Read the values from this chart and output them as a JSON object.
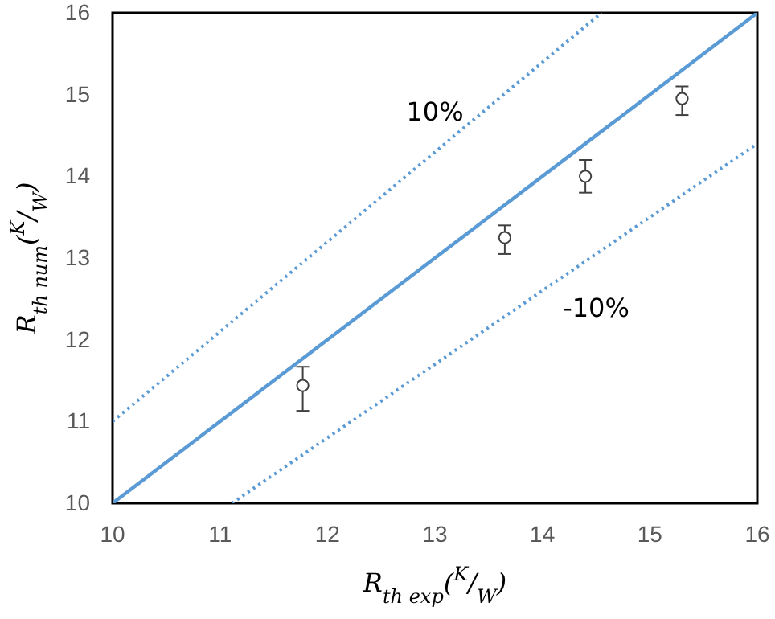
{
  "chart_data": {
    "type": "scatter",
    "xlabel": "R$_{th exp}$($^{K}$/$_{W}$)",
    "ylabel": "R$_{th num}$($^{K}$/$_{W}$)",
    "xlim": [
      10,
      16
    ],
    "ylim": [
      10,
      16
    ],
    "xticks": [
      10,
      11,
      12,
      13,
      14,
      15,
      16
    ],
    "yticks": [
      10,
      11,
      12,
      13,
      14,
      15,
      16
    ],
    "grid": false,
    "series": [
      {
        "type": "line",
        "color": "#5b9bd5",
        "line_style": "solid",
        "marker": "none",
        "x": [
          10,
          16
        ],
        "values": [
          10,
          16
        ]
      },
      {
        "type": "line",
        "color": "#5b9bd5",
        "line_style": "dotted",
        "marker": "none",
        "x": [
          10,
          14.55
        ],
        "values": [
          11,
          16
        ]
      },
      {
        "type": "line",
        "color": "#5b9bd5",
        "line_style": "dotted",
        "marker": "none",
        "x": [
          11.11,
          16
        ],
        "values": [
          10,
          14.4
        ]
      },
      {
        "color": "#404040",
        "marker": "circle",
        "x": [
          11.77,
          13.65,
          14.4,
          15.3
        ],
        "values": [
          11.44,
          13.25,
          14.0,
          14.95
        ],
        "errors": [
          [
            11.13,
            11.67
          ],
          [
            13.05,
            13.4
          ],
          [
            13.8,
            14.2
          ],
          [
            14.75,
            15.1
          ]
        ]
      }
    ],
    "annotations": [
      "10%",
      "-10%"
    ]
  }
}
